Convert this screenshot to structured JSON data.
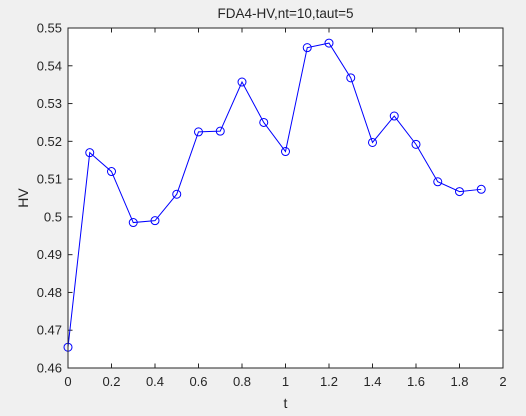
{
  "chart_data": {
    "type": "line",
    "title": "FDA4-HV,nt=10,taut=5",
    "xlabel": "t",
    "ylabel": "HV",
    "xlim": [
      0,
      2
    ],
    "ylim": [
      0.46,
      0.55
    ],
    "xticks": [
      0,
      0.2,
      0.4,
      0.6,
      0.8,
      1,
      1.2,
      1.4,
      1.6,
      1.8,
      2
    ],
    "xtick_labels": [
      "0",
      "0.2",
      "0.4",
      "0.6",
      "0.8",
      "1",
      "1.2",
      "1.4",
      "1.6",
      "1.8",
      "2"
    ],
    "yticks": [
      0.46,
      0.47,
      0.48,
      0.49,
      0.5,
      0.51,
      0.52,
      0.53,
      0.54,
      0.55
    ],
    "ytick_labels": [
      "0.46",
      "0.47",
      "0.48",
      "0.49",
      "0.5",
      "0.51",
      "0.52",
      "0.53",
      "0.54",
      "0.55"
    ],
    "grid": false,
    "series": [
      {
        "color": "#0000ff",
        "marker": "circle",
        "x": [
          0,
          0.1,
          0.2,
          0.3,
          0.4,
          0.5,
          0.6,
          0.7,
          0.8,
          0.9,
          1.0,
          1.1,
          1.2,
          1.3,
          1.4,
          1.5,
          1.6,
          1.7,
          1.8,
          1.9
        ],
        "y": [
          0.4655,
          0.517,
          0.512,
          0.4985,
          0.499,
          0.506,
          0.5225,
          0.5227,
          0.5357,
          0.525,
          0.5173,
          0.5448,
          0.546,
          0.5368,
          0.5197,
          0.5267,
          0.5192,
          0.5093,
          0.5067,
          0.5073
        ]
      }
    ]
  }
}
